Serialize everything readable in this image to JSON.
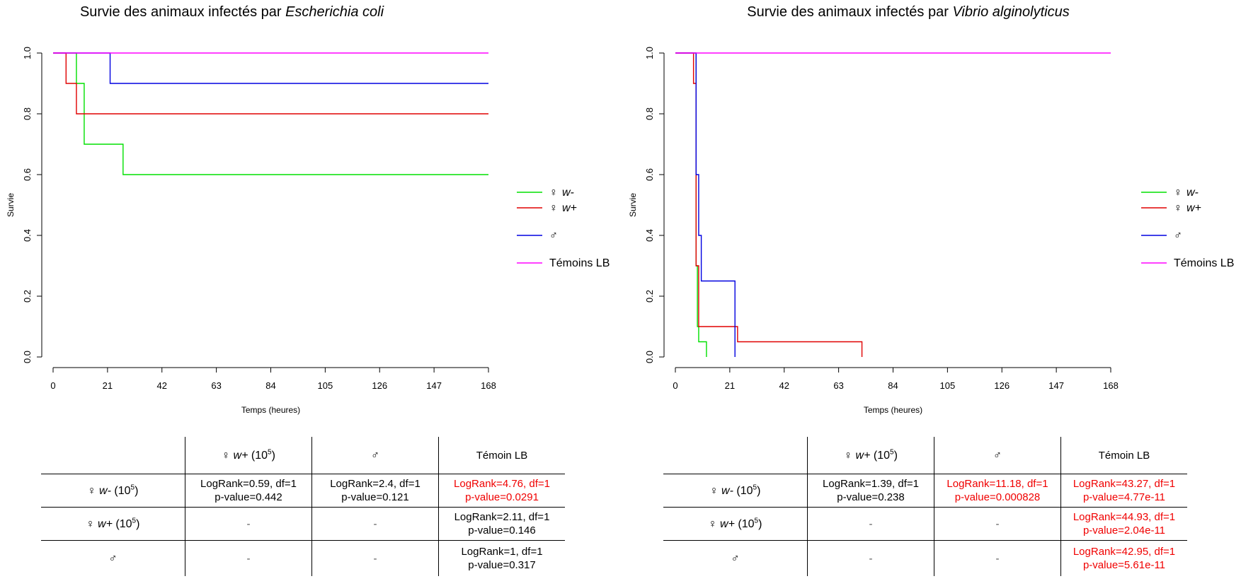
{
  "chart_data": [
    {
      "type": "line",
      "step": true,
      "title_prefix": "Survie des animaux infectés par ",
      "title_species": "Escherichia coli",
      "xlabel": "Temps (heures)",
      "ylabel": "Survie",
      "xlim": [
        0,
        168
      ],
      "ylim": [
        0,
        1
      ],
      "xticks": [
        0,
        21,
        42,
        63,
        84,
        105,
        126,
        147,
        168
      ],
      "yticks": [
        0.0,
        0.2,
        0.4,
        0.6,
        0.8,
        1.0
      ],
      "ytick_labels": [
        "0.0",
        "0.2",
        "0.4",
        "0.6",
        "0.8",
        "1.0"
      ],
      "legend_position": "right",
      "series": [
        {
          "name": "♀ w-",
          "color": "#00e000",
          "x": [
            0,
            9,
            12,
            27,
            168
          ],
          "y": [
            1.0,
            0.9,
            0.7,
            0.6,
            0.6
          ]
        },
        {
          "name": "♀ w+",
          "color": "#e00000",
          "x": [
            0,
            5,
            9,
            168
          ],
          "y": [
            1.0,
            0.9,
            0.8,
            0.8
          ]
        },
        {
          "name": "♂",
          "color": "#0000e0",
          "x": [
            0,
            22,
            168
          ],
          "y": [
            1.0,
            0.9,
            0.9
          ]
        },
        {
          "name": "Témoins LB",
          "color": "#ff00ff",
          "x": [
            0,
            168
          ],
          "y": [
            1.0,
            1.0
          ]
        }
      ]
    },
    {
      "type": "line",
      "step": true,
      "title_prefix": "Survie des animaux infectés par ",
      "title_species": "Vibrio alginolyticus",
      "xlabel": "Temps (heures)",
      "ylabel": "Survie",
      "xlim": [
        0,
        168
      ],
      "ylim": [
        0,
        1
      ],
      "xticks": [
        0,
        21,
        42,
        63,
        84,
        105,
        126,
        147,
        168
      ],
      "yticks": [
        0.0,
        0.2,
        0.4,
        0.6,
        0.8,
        1.0
      ],
      "ytick_labels": [
        "0.0",
        "0.2",
        "0.4",
        "0.6",
        "0.8",
        "1.0"
      ],
      "legend_position": "right",
      "series": [
        {
          "name": "♀ w-",
          "color": "#00e000",
          "x": [
            0,
            8,
            8.5,
            9,
            12
          ],
          "y": [
            1.0,
            0.3,
            0.1,
            0.05,
            0.0
          ]
        },
        {
          "name": "♀ w+",
          "color": "#e00000",
          "x": [
            0,
            7,
            8,
            9,
            24,
            72
          ],
          "y": [
            1.0,
            0.9,
            0.3,
            0.1,
            0.05,
            0.0
          ]
        },
        {
          "name": "♂",
          "color": "#0000e0",
          "x": [
            0,
            8,
            9,
            10,
            23
          ],
          "y": [
            1.0,
            0.6,
            0.4,
            0.25,
            0.0
          ]
        },
        {
          "name": "Témoins LB",
          "color": "#ff00ff",
          "x": [
            0,
            168
          ],
          "y": [
            1.0,
            1.0
          ]
        }
      ]
    }
  ],
  "legend": {
    "w_minus_sym": "♀",
    "w_minus_txt": "w-",
    "w_plus_sym": "♀",
    "w_plus_txt": "w+",
    "male": "♂",
    "control": "Témoins LB"
  },
  "tables": [
    {
      "header_col2_sym": "♀",
      "header_col2_txt": "w+",
      "header_col3": "♂",
      "header_col4": "Témoin LB",
      "dose_base": "(10",
      "dose_exp": "5",
      "dose_close": ")",
      "rows": [
        {
          "label_sym": "♀",
          "label_txt": "w-",
          "c2": {
            "l1": "LogRank=0.59,  df=1",
            "l2": "p-value=0.442",
            "sig": false
          },
          "c3": {
            "l1": "LogRank=2.4,  df=1",
            "l2": "p-value=0.121",
            "sig": false
          },
          "c4": {
            "l1": "LogRank=4.76,  df=1",
            "l2": "p-value=0.0291",
            "sig": true
          }
        },
        {
          "label_sym": "♀",
          "label_txt": "w+",
          "c2": "-",
          "c3": "-",
          "c4": {
            "l1": "LogRank=2.11,  df=1",
            "l2": "p-value=0.146",
            "sig": false
          }
        },
        {
          "label_sym": "♂",
          "label_txt": "",
          "c2": "-",
          "c3": "-",
          "c4": {
            "l1": "LogRank=1,  df=1",
            "l2": "p-value=0.317",
            "sig": false
          }
        }
      ]
    },
    {
      "header_col2_sym": "♀",
      "header_col2_txt": "w+",
      "header_col3": "♂",
      "header_col4": "Témoin LB",
      "dose_base": "(10",
      "dose_exp": "5",
      "dose_close": ")",
      "rows": [
        {
          "label_sym": "♀",
          "label_txt": "w-",
          "c2": {
            "l1": "LogRank=1.39,  df=1",
            "l2": "p-value=0.238",
            "sig": false
          },
          "c3": {
            "l1": "LogRank=11.18,  df=1",
            "l2": "p-value=0.000828",
            "sig": true
          },
          "c4": {
            "l1": "LogRank=43.27,  df=1",
            "l2": "p-value=4.77e-11",
            "sig": true
          }
        },
        {
          "label_sym": "♀",
          "label_txt": "w+",
          "c2": "-",
          "c3": "-",
          "c4": {
            "l1": "LogRank=44.93,  df=1",
            "l2": "p-value=2.04e-11",
            "sig": true
          }
        },
        {
          "label_sym": "♂",
          "label_txt": "",
          "c2": "-",
          "c3": "-",
          "c4": {
            "l1": "LogRank=42.95,  df=1",
            "l2": "p-value=5.61e-11",
            "sig": true
          }
        }
      ]
    }
  ]
}
